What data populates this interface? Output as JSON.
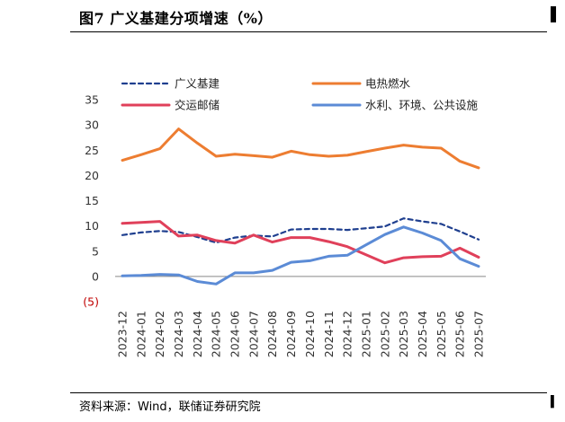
{
  "figure": {
    "title": "图7  广义基建分项增速（%）",
    "source": "资料来源：Wind，联储证券研究院"
  },
  "colors": {
    "broad_infra": "#1f3f8f",
    "utilities": "#ed7d31",
    "transport": "#e0405a",
    "water": "#5b8bd6",
    "axis": "#888888",
    "negative_tick": "#c00000"
  },
  "chart_data": {
    "type": "line",
    "x": [
      "2023-12",
      "2024-01",
      "2024-02",
      "2024-03",
      "2024-04",
      "2024-05",
      "2024-06",
      "2024-07",
      "2024-08",
      "2024-09",
      "2024-10",
      "2024-11",
      "2024-12",
      "2025-01",
      "2025-02",
      "2025-03",
      "2025-04",
      "2025-05",
      "2025-06",
      "2025-07"
    ],
    "ylim": [
      -5,
      35
    ],
    "yticks": [
      -5,
      0,
      5,
      10,
      15,
      20,
      25,
      30,
      35
    ],
    "ytick_labels": [
      "(5)",
      "0",
      "5",
      "10",
      "15",
      "20",
      "25",
      "30",
      "35"
    ],
    "legend_position": "top",
    "grid": false,
    "series": [
      {
        "name": "广义基建",
        "style": "dashed",
        "color": "#1f3f8f",
        "values": [
          8.2,
          8.7,
          9.0,
          8.8,
          7.8,
          6.7,
          7.7,
          8.1,
          7.9,
          9.3,
          9.4,
          9.4,
          9.2,
          null,
          9.9,
          11.5,
          10.9,
          10.4,
          8.9,
          7.3
        ]
      },
      {
        "name": "电热燃水",
        "style": "solid",
        "color": "#ed7d31",
        "values": [
          23.0,
          24.1,
          25.3,
          29.2,
          26.4,
          23.8,
          24.2,
          23.9,
          23.6,
          24.8,
          24.1,
          23.8,
          24.0,
          null,
          25.4,
          26.0,
          25.6,
          25.4,
          22.8,
          21.5
        ]
      },
      {
        "name": "交运邮储",
        "style": "solid",
        "color": "#e0405a",
        "values": [
          10.5,
          10.7,
          10.9,
          8.0,
          8.2,
          7.1,
          6.6,
          8.2,
          6.8,
          7.7,
          7.7,
          6.9,
          5.9,
          null,
          2.7,
          3.7,
          3.9,
          4.0,
          5.6,
          3.8
        ]
      },
      {
        "name": "水利、环境、公共设施",
        "style": "solid",
        "color": "#5b8bd6",
        "values": [
          0.1,
          0.2,
          0.4,
          0.3,
          -1.0,
          -1.5,
          0.7,
          0.7,
          1.2,
          2.8,
          3.1,
          4.0,
          4.2,
          null,
          8.3,
          9.8,
          8.6,
          7.1,
          3.5,
          2.0
        ]
      }
    ]
  }
}
